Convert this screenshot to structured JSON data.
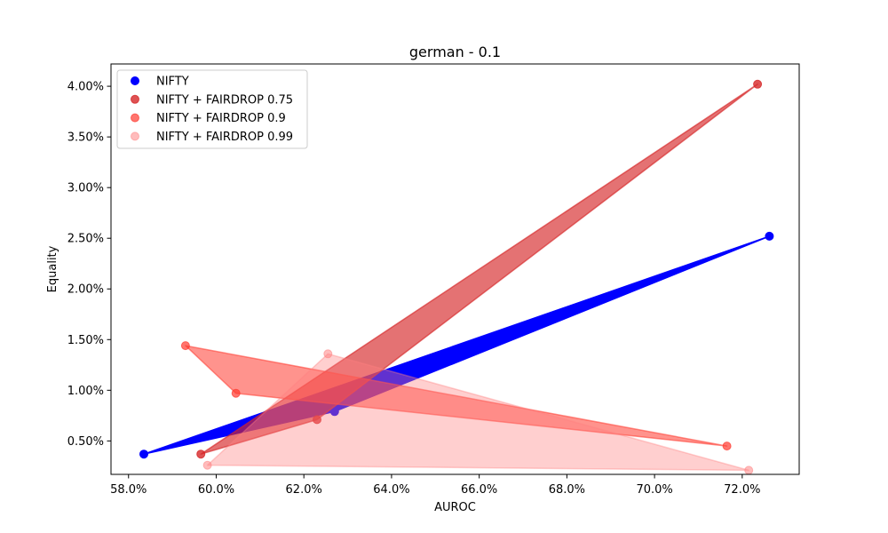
{
  "chart_data": {
    "type": "scatter",
    "title": "german - 0.1",
    "xlabel": "AUROC",
    "ylabel": "Equality",
    "xlim": [
      57.6,
      73.3
    ],
    "ylim": [
      0.17,
      4.22
    ],
    "xticks": [
      58.0,
      60.0,
      62.0,
      64.0,
      66.0,
      68.0,
      70.0,
      72.0
    ],
    "xtick_labels": [
      "58.0%",
      "60.0%",
      "62.0%",
      "64.0%",
      "66.0%",
      "68.0%",
      "70.0%",
      "72.0%"
    ],
    "yticks": [
      0.5,
      1.0,
      1.5,
      2.0,
      2.5,
      3.0,
      3.5,
      4.0
    ],
    "ytick_labels": [
      "0.50%",
      "1.00%",
      "1.50%",
      "2.00%",
      "2.50%",
      "3.00%",
      "3.50%",
      "4.00%"
    ],
    "grid": false,
    "legend_position": "top-left",
    "series": [
      {
        "name": "NIFTY",
        "color": "#0000ff",
        "opacity": 1.0,
        "points": [
          [
            58.35,
            0.37
          ],
          [
            62.7,
            0.79
          ],
          [
            72.62,
            2.52
          ]
        ]
      },
      {
        "name": "NIFTY + FAIRDROP 0.75",
        "color": "#d62728",
        "opacity": 0.65,
        "points": [
          [
            59.65,
            0.37
          ],
          [
            62.3,
            0.71
          ],
          [
            72.35,
            4.02
          ]
        ]
      },
      {
        "name": "NIFTY + FAIRDROP 0.9",
        "color": "#ff3b30",
        "opacity": 0.55,
        "points": [
          [
            59.3,
            1.44
          ],
          [
            60.45,
            0.97
          ],
          [
            71.65,
            0.45
          ]
        ]
      },
      {
        "name": "NIFTY + FAIRDROP 0.99",
        "color": "#ff8080",
        "opacity": 0.38,
        "points": [
          [
            59.8,
            0.26
          ],
          [
            62.55,
            1.36
          ],
          [
            72.15,
            0.21
          ]
        ]
      }
    ]
  }
}
